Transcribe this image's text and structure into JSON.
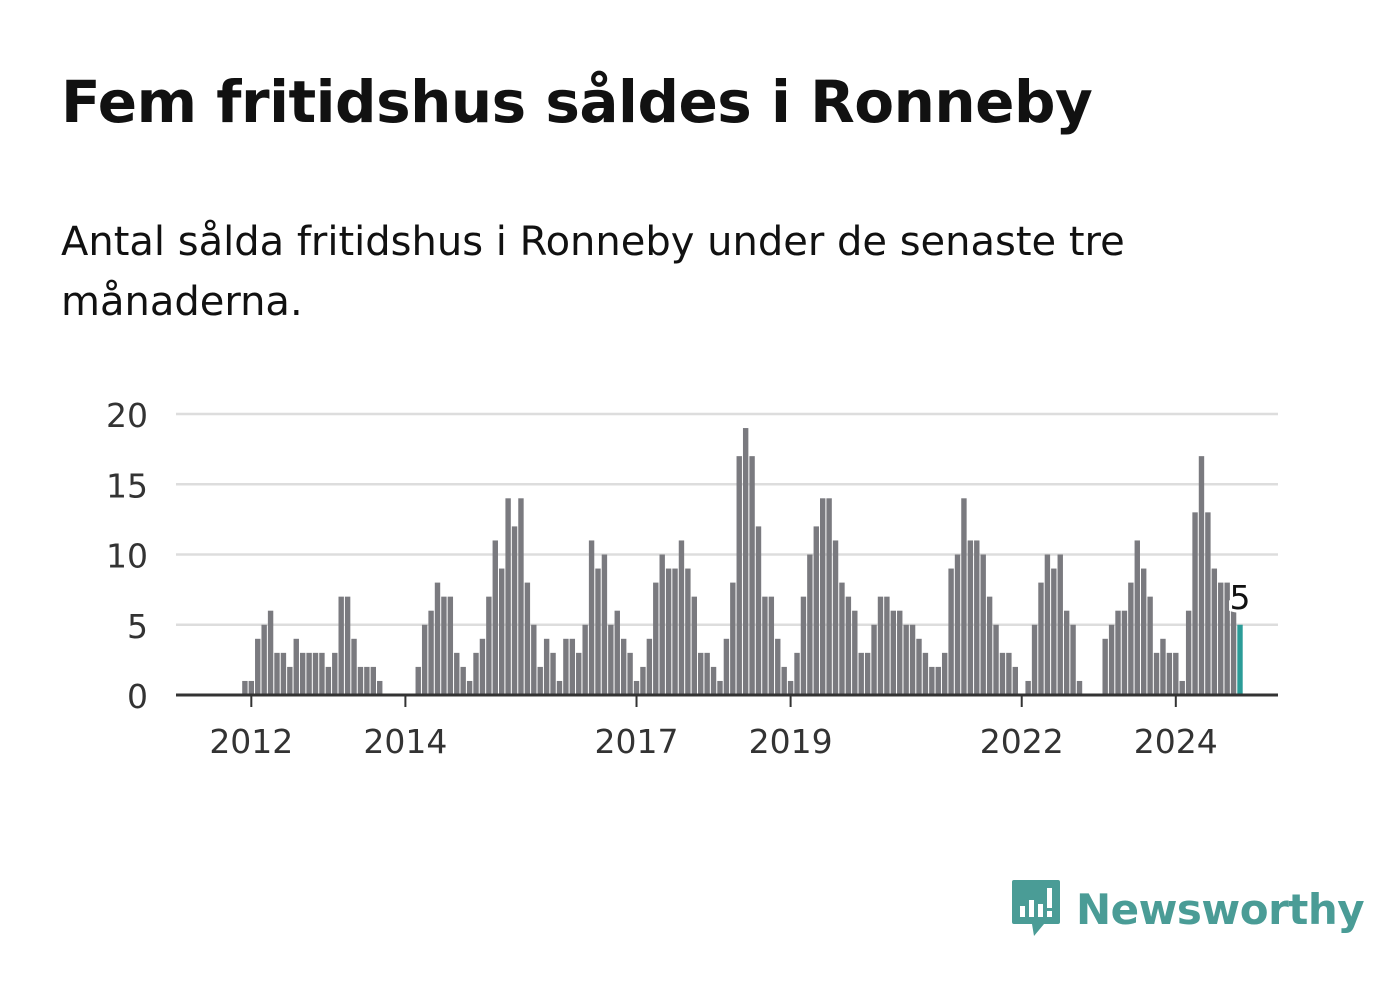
{
  "title": "Fem fritidshus såldes i Ronneby",
  "subtitle": "Antal sålda fritidshus i Ronneby under de senaste tre månaderna.",
  "colors": {
    "bar": "#7a7a7f",
    "highlight": "#2b9c98",
    "grid": "#dddddd",
    "axis": "#333333",
    "brand": "#4a9c96"
  },
  "brand": {
    "name": "Newsworthy",
    "icon": "newsworthy-bar-chart-icon"
  },
  "chart_data": {
    "type": "bar",
    "title": "Fem fritidshus såldes i Ronneby",
    "xlabel": "",
    "ylabel": "",
    "ylim": [
      0,
      20
    ],
    "y_ticks": [
      0,
      5,
      10,
      15,
      20
    ],
    "x_tick_labels": [
      "2012",
      "2014",
      "2017",
      "2019",
      "2022",
      "2024"
    ],
    "grid": true,
    "legend": "none",
    "highlight_label": "5",
    "series": [
      {
        "values": [
          0,
          0,
          0,
          0,
          0,
          0,
          0,
          0,
          0,
          0,
          1,
          1,
          4,
          5,
          6,
          3,
          3,
          2,
          4,
          3,
          3,
          3,
          3,
          2,
          3,
          7,
          7,
          4,
          2,
          2,
          2,
          1,
          0,
          0,
          0,
          0,
          0,
          2,
          5,
          6,
          8,
          7,
          7,
          3,
          2,
          1,
          3,
          4,
          7,
          11,
          9,
          14,
          12,
          14,
          8,
          5,
          2,
          4,
          3,
          1,
          4,
          4,
          3,
          5,
          11,
          9,
          10,
          5,
          6,
          4,
          3,
          1,
          2,
          4,
          8,
          10,
          9,
          9,
          11,
          9,
          7,
          3,
          3,
          2,
          1,
          4,
          8,
          17,
          19,
          17,
          12,
          7,
          7,
          4,
          2,
          1,
          3,
          7,
          10,
          12,
          14,
          14,
          11,
          8,
          7,
          6,
          3,
          3,
          5,
          7,
          7,
          6,
          6,
          5,
          5,
          4,
          3,
          2,
          2,
          3,
          9,
          10,
          14,
          11,
          11,
          10,
          7,
          5,
          3,
          3,
          2,
          0,
          1,
          5,
          8,
          10,
          9,
          10,
          6,
          5,
          1,
          0,
          0,
          0,
          4,
          5,
          6,
          6,
          8,
          11,
          9,
          7,
          3,
          4,
          3,
          3,
          1,
          6,
          13,
          17,
          13,
          9,
          8,
          8,
          6,
          5
        ]
      }
    ]
  }
}
